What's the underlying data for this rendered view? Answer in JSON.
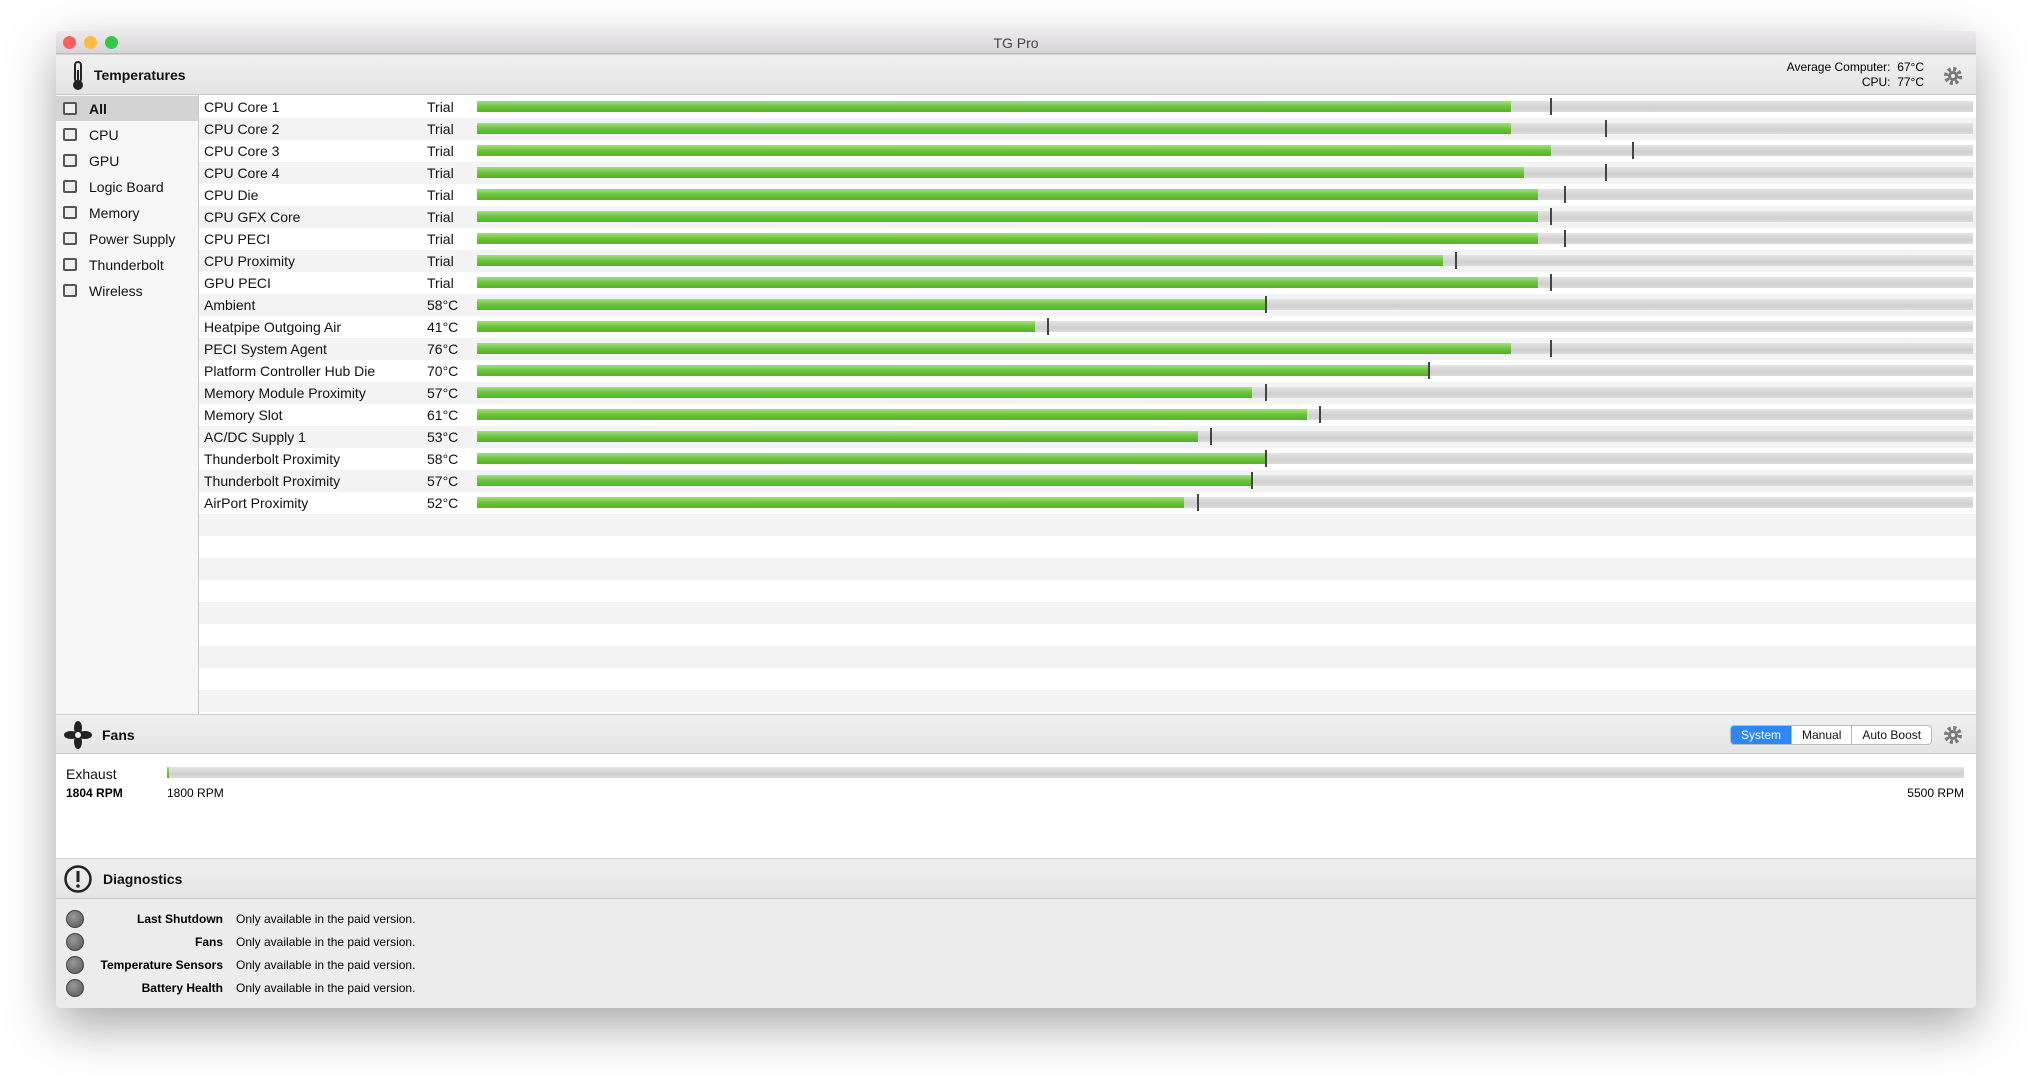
{
  "window": {
    "title": "TG Pro"
  },
  "temperatures": {
    "title": "Temperatures",
    "average_label": "Average Computer:",
    "average": "67°C",
    "cpu_label": "CPU:",
    "cpu": "77°C",
    "categories": [
      "All",
      "CPU",
      "GPU",
      "Logic Board",
      "Memory",
      "Power Supply",
      "Thunderbolt",
      "Wireless"
    ],
    "selected_category": "All",
    "xlim": [
      0,
      110
    ],
    "sensors": [
      {
        "name": "CPU Core 1",
        "reading": "Trial",
        "temp": 76,
        "max": 79
      },
      {
        "name": "CPU Core 2",
        "reading": "Trial",
        "temp": 76,
        "max": 83
      },
      {
        "name": "CPU Core 3",
        "reading": "Trial",
        "temp": 79,
        "max": 85
      },
      {
        "name": "CPU Core 4",
        "reading": "Trial",
        "temp": 77,
        "max": 83
      },
      {
        "name": "CPU Die",
        "reading": "Trial",
        "temp": 78,
        "max": 80
      },
      {
        "name": "CPU GFX Core",
        "reading": "Trial",
        "temp": 78,
        "max": 79
      },
      {
        "name": "CPU PECI",
        "reading": "Trial",
        "temp": 78,
        "max": 80
      },
      {
        "name": "CPU Proximity",
        "reading": "Trial",
        "temp": 71,
        "max": 72
      },
      {
        "name": "GPU PECI",
        "reading": "Trial",
        "temp": 78,
        "max": 79
      },
      {
        "name": "Ambient",
        "reading": "58°C",
        "temp": 58,
        "max": 58
      },
      {
        "name": "Heatpipe Outgoing Air",
        "reading": "41°C",
        "temp": 41,
        "max": 42
      },
      {
        "name": "PECI System Agent",
        "reading": "76°C",
        "temp": 76,
        "max": 79
      },
      {
        "name": "Platform Controller Hub Die",
        "reading": "70°C",
        "temp": 70,
        "max": 70
      },
      {
        "name": "Memory Module Proximity",
        "reading": "57°C",
        "temp": 57,
        "max": 58
      },
      {
        "name": "Memory Slot",
        "reading": "61°C",
        "temp": 61,
        "max": 62
      },
      {
        "name": "AC/DC Supply 1",
        "reading": "53°C",
        "temp": 53,
        "max": 54
      },
      {
        "name": "Thunderbolt Proximity",
        "reading": "58°C",
        "temp": 58,
        "max": 58
      },
      {
        "name": "Thunderbolt Proximity",
        "reading": "57°C",
        "temp": 57,
        "max": 57
      },
      {
        "name": "AirPort Proximity",
        "reading": "52°C",
        "temp": 52,
        "max": 53
      }
    ]
  },
  "fans": {
    "title": "Fans",
    "modes": [
      "System",
      "Manual",
      "Auto Boost"
    ],
    "active_mode": "System",
    "fans": [
      {
        "name": "Exhaust",
        "rpm": {
          "value": 1804,
          "label": "1804 RPM"
        },
        "min": {
          "value": 1800,
          "label": "1800 RPM"
        },
        "max": {
          "value": 5500,
          "label": "5500 RPM"
        }
      }
    ]
  },
  "diagnostics": {
    "title": "Diagnostics",
    "items": [
      {
        "label": "Last Shutdown",
        "status": "Only available in the paid version."
      },
      {
        "label": "Fans",
        "status": "Only available in the paid version."
      },
      {
        "label": "Temperature Sensors",
        "status": "Only available in the paid version."
      },
      {
        "label": "Battery Health",
        "status": "Only available in the paid version."
      }
    ]
  }
}
